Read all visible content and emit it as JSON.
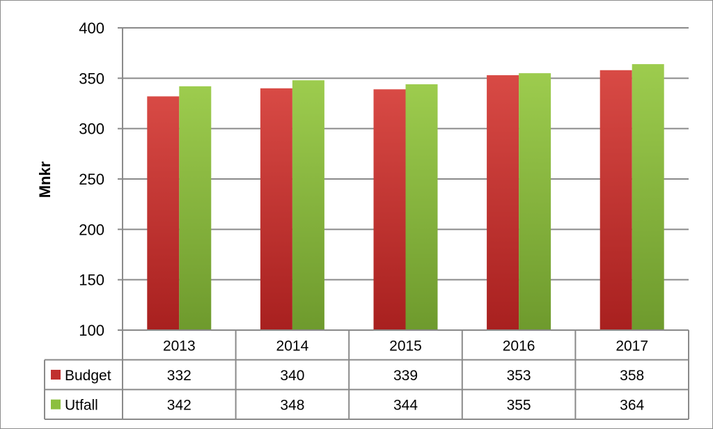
{
  "chart_data": {
    "type": "bar",
    "title": "",
    "xlabel": "",
    "ylabel": "Mnkr",
    "ylim": [
      100,
      400
    ],
    "ytick_step": 50,
    "grid": true,
    "categories": [
      "2013",
      "2014",
      "2015",
      "2016",
      "2017"
    ],
    "series": [
      {
        "name": "Budget",
        "values": [
          332,
          340,
          339,
          353,
          358
        ],
        "color": "#c0302e"
      },
      {
        "name": "Utfall",
        "values": [
          342,
          348,
          344,
          355,
          364
        ],
        "color": "#8cbf3f"
      }
    ],
    "data_table": true
  }
}
